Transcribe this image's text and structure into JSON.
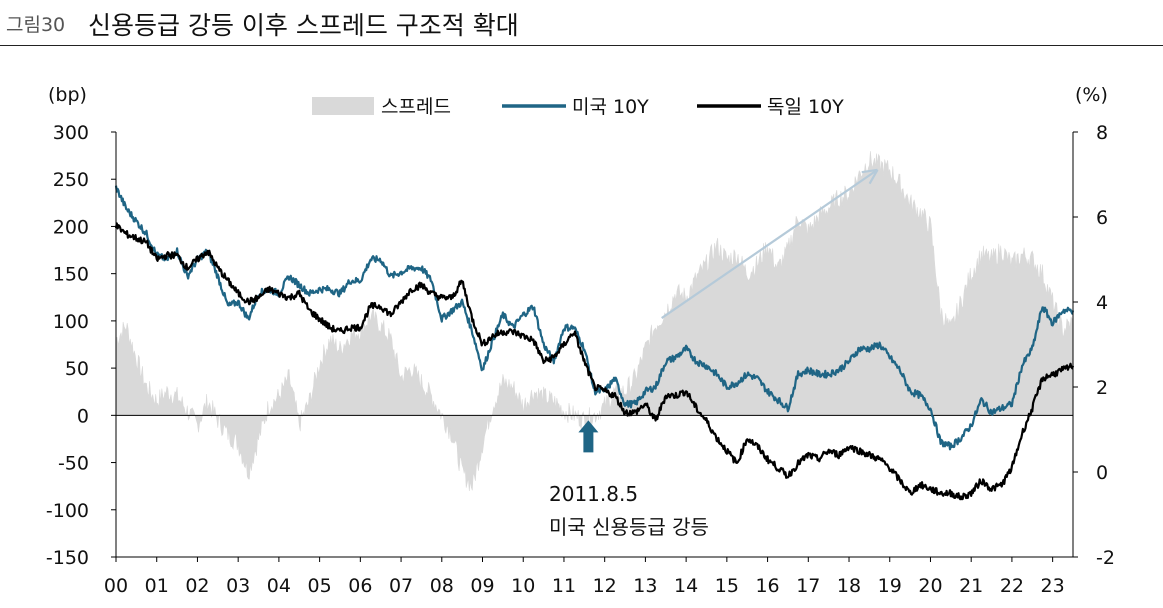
{
  "header": {
    "figure_label": "그림30",
    "title": "신용등급 강등 이후 스프레드 구조적 확대"
  },
  "colors": {
    "spread": "#d9d9d9",
    "us10y": "#1f6585",
    "de10y": "#000000",
    "arrow_up": "#1f6585",
    "trend_arrow": "#b5cad9"
  },
  "chart_data": {
    "type": "line",
    "title": "신용등급 강등 이후 스프레드 구조적 확대",
    "left_axis": {
      "unit": "(bp)",
      "ylim": [
        -150,
        300
      ],
      "ticks": [
        "300",
        "250",
        "200",
        "150",
        "100",
        "50",
        "0",
        "-50",
        "-100",
        "-150"
      ]
    },
    "right_axis": {
      "unit": "(%)",
      "ylim": [
        -2,
        8
      ],
      "ticks": [
        "8",
        "6",
        "4",
        "2",
        "0",
        "-2"
      ]
    },
    "x_ticks": [
      "00",
      "01",
      "02",
      "03",
      "04",
      "05",
      "06",
      "07",
      "08",
      "09",
      "10",
      "11",
      "12",
      "13",
      "14",
      "15",
      "16",
      "17",
      "18",
      "19",
      "20",
      "21",
      "22",
      "23"
    ],
    "x_range": [
      2000.0,
      2023.5
    ],
    "legend": {
      "placement": "top",
      "items": [
        {
          "name": "스프레드",
          "kind": "area"
        },
        {
          "name": "미국 10Y",
          "kind": "line"
        },
        {
          "name": "독일 10Y",
          "kind": "line"
        }
      ]
    },
    "series": [
      {
        "name": "스프레드",
        "axis": "left",
        "type": "area",
        "x": [
          2000.0,
          2000.25,
          2000.5,
          2000.75,
          2001.0,
          2001.25,
          2001.5,
          2001.75,
          2002.0,
          2002.25,
          2002.5,
          2002.75,
          2003.0,
          2003.25,
          2003.5,
          2003.75,
          2004.0,
          2004.25,
          2004.5,
          2004.75,
          2005.0,
          2005.25,
          2005.5,
          2005.75,
          2006.0,
          2006.25,
          2006.5,
          2006.75,
          2007.0,
          2007.25,
          2007.5,
          2007.75,
          2008.0,
          2008.25,
          2008.5,
          2008.75,
          2009.0,
          2009.25,
          2009.5,
          2009.75,
          2010.0,
          2010.25,
          2010.5,
          2010.75,
          2011.0,
          2011.25,
          2011.5,
          2011.75,
          2012.0,
          2012.25,
          2012.5,
          2012.75,
          2013.0,
          2013.25,
          2013.5,
          2013.75,
          2014.0,
          2014.25,
          2014.5,
          2014.75,
          2015.0,
          2015.25,
          2015.5,
          2015.75,
          2016.0,
          2016.25,
          2016.5,
          2016.75,
          2017.0,
          2017.25,
          2017.5,
          2017.75,
          2018.0,
          2018.25,
          2018.5,
          2018.75,
          2019.0,
          2019.25,
          2019.5,
          2019.75,
          2020.0,
          2020.25,
          2020.5,
          2020.75,
          2021.0,
          2021.25,
          2021.5,
          2021.75,
          2022.0,
          2022.25,
          2022.5,
          2022.75,
          2023.0,
          2023.25,
          2023.5
        ],
        "values": [
          80,
          95,
          60,
          30,
          15,
          25,
          20,
          5,
          -10,
          15,
          -5,
          -20,
          -30,
          -60,
          -25,
          10,
          20,
          40,
          -10,
          15,
          55,
          80,
          70,
          85,
          90,
          105,
          95,
          80,
          40,
          50,
          35,
          20,
          0,
          -20,
          -60,
          -75,
          -30,
          10,
          35,
          30,
          10,
          25,
          20,
          15,
          5,
          0,
          -5,
          0,
          10,
          25,
          25,
          40,
          70,
          95,
          110,
          130,
          125,
          145,
          160,
          180,
          165,
          170,
          150,
          160,
          180,
          155,
          175,
          210,
          195,
          210,
          220,
          230,
          235,
          255,
          270,
          265,
          260,
          245,
          225,
          215,
          200,
          110,
          90,
          120,
          150,
          170,
          165,
          175,
          160,
          170,
          165,
          150,
          120,
          90,
          100
        ]
      },
      {
        "name": "미국 10Y",
        "axis": "right",
        "type": "line",
        "x": [
          2000.0,
          2000.25,
          2000.5,
          2000.75,
          2001.0,
          2001.25,
          2001.5,
          2001.75,
          2002.0,
          2002.25,
          2002.5,
          2002.75,
          2003.0,
          2003.25,
          2003.5,
          2003.75,
          2004.0,
          2004.25,
          2004.5,
          2004.75,
          2005.0,
          2005.25,
          2005.5,
          2005.75,
          2006.0,
          2006.25,
          2006.5,
          2006.75,
          2007.0,
          2007.25,
          2007.5,
          2007.75,
          2008.0,
          2008.25,
          2008.5,
          2008.75,
          2009.0,
          2009.25,
          2009.5,
          2009.75,
          2010.0,
          2010.25,
          2010.5,
          2010.75,
          2011.0,
          2011.25,
          2011.5,
          2011.75,
          2012.0,
          2012.25,
          2012.5,
          2012.75,
          2013.0,
          2013.25,
          2013.5,
          2013.75,
          2014.0,
          2014.25,
          2014.5,
          2014.75,
          2015.0,
          2015.25,
          2015.5,
          2015.75,
          2016.0,
          2016.25,
          2016.5,
          2016.75,
          2017.0,
          2017.25,
          2017.5,
          2017.75,
          2018.0,
          2018.25,
          2018.5,
          2018.75,
          2019.0,
          2019.25,
          2019.5,
          2019.75,
          2020.0,
          2020.25,
          2020.5,
          2020.75,
          2021.0,
          2021.25,
          2021.5,
          2021.75,
          2022.0,
          2022.25,
          2022.5,
          2022.75,
          2023.0,
          2023.25,
          2023.5
        ],
        "values": [
          6.7,
          6.2,
          5.9,
          5.6,
          5.1,
          5.0,
          5.2,
          4.6,
          5.0,
          5.2,
          4.6,
          3.9,
          4.0,
          3.6,
          4.2,
          4.3,
          4.2,
          4.6,
          4.4,
          4.2,
          4.3,
          4.3,
          4.2,
          4.5,
          4.5,
          5.0,
          5.0,
          4.6,
          4.7,
          4.8,
          4.8,
          4.5,
          3.6,
          3.8,
          4.0,
          3.3,
          2.4,
          3.1,
          3.7,
          3.4,
          3.7,
          3.9,
          3.0,
          2.6,
          3.4,
          3.4,
          2.9,
          1.9,
          1.9,
          2.2,
          1.6,
          1.6,
          1.9,
          2.0,
          2.6,
          2.7,
          2.9,
          2.6,
          2.5,
          2.3,
          2.0,
          2.1,
          2.3,
          2.2,
          1.9,
          1.7,
          1.5,
          2.3,
          2.4,
          2.3,
          2.3,
          2.4,
          2.6,
          2.9,
          2.9,
          3.0,
          2.7,
          2.4,
          1.9,
          1.8,
          1.5,
          0.7,
          0.6,
          0.8,
          1.1,
          1.7,
          1.4,
          1.5,
          1.6,
          2.5,
          2.9,
          3.9,
          3.5,
          3.8,
          3.8
        ]
      },
      {
        "name": "독일 10Y",
        "axis": "right",
        "type": "line",
        "x": [
          2000.0,
          2000.25,
          2000.5,
          2000.75,
          2001.0,
          2001.25,
          2001.5,
          2001.75,
          2002.0,
          2002.25,
          2002.5,
          2002.75,
          2003.0,
          2003.25,
          2003.5,
          2003.75,
          2004.0,
          2004.25,
          2004.5,
          2004.75,
          2005.0,
          2005.25,
          2005.5,
          2005.75,
          2006.0,
          2006.25,
          2006.5,
          2006.75,
          2007.0,
          2007.25,
          2007.5,
          2007.75,
          2008.0,
          2008.25,
          2008.5,
          2008.75,
          2009.0,
          2009.25,
          2009.5,
          2009.75,
          2010.0,
          2010.25,
          2010.5,
          2010.75,
          2011.0,
          2011.25,
          2011.5,
          2011.75,
          2012.0,
          2012.25,
          2012.5,
          2012.75,
          2013.0,
          2013.25,
          2013.5,
          2013.75,
          2014.0,
          2014.25,
          2014.5,
          2014.75,
          2015.0,
          2015.25,
          2015.5,
          2015.75,
          2016.0,
          2016.25,
          2016.5,
          2016.75,
          2017.0,
          2017.25,
          2017.5,
          2017.75,
          2018.0,
          2018.25,
          2018.5,
          2018.75,
          2019.0,
          2019.25,
          2019.5,
          2019.75,
          2020.0,
          2020.25,
          2020.5,
          2020.75,
          2021.0,
          2021.25,
          2021.5,
          2021.75,
          2022.0,
          2022.25,
          2022.5,
          2022.75,
          2023.0,
          2023.25,
          2023.5
        ],
        "values": [
          5.8,
          5.6,
          5.5,
          5.4,
          5.0,
          5.1,
          5.1,
          4.8,
          5.0,
          5.2,
          4.8,
          4.5,
          4.2,
          4.0,
          4.1,
          4.3,
          4.2,
          4.1,
          4.2,
          3.8,
          3.6,
          3.4,
          3.3,
          3.4,
          3.4,
          3.9,
          3.9,
          3.7,
          4.0,
          4.3,
          4.4,
          4.2,
          4.1,
          4.1,
          4.5,
          3.6,
          3.0,
          3.2,
          3.3,
          3.3,
          3.2,
          3.1,
          2.6,
          2.7,
          3.0,
          3.3,
          2.6,
          2.0,
          1.9,
          1.8,
          1.4,
          1.4,
          1.6,
          1.2,
          1.8,
          1.8,
          1.9,
          1.5,
          1.2,
          0.8,
          0.5,
          0.2,
          0.8,
          0.6,
          0.3,
          0.1,
          -0.1,
          0.2,
          0.4,
          0.3,
          0.5,
          0.4,
          0.6,
          0.5,
          0.4,
          0.3,
          0.1,
          -0.2,
          -0.5,
          -0.3,
          -0.4,
          -0.5,
          -0.5,
          -0.6,
          -0.5,
          -0.2,
          -0.4,
          -0.3,
          0.1,
          0.9,
          1.5,
          2.2,
          2.3,
          2.4,
          2.5
        ]
      }
    ],
    "annotations": [
      {
        "kind": "up-arrow",
        "x": 2011.6,
        "value": -18,
        "axis": "left"
      },
      {
        "kind": "text",
        "lines": [
          "2011.8.5",
          "미국 신용등급 강등"
        ],
        "x": 2011.6
      },
      {
        "kind": "trend-arrow",
        "from_x": 2013.4,
        "from_value": 103,
        "to_x": 2018.7,
        "to_value": 260
      }
    ]
  }
}
